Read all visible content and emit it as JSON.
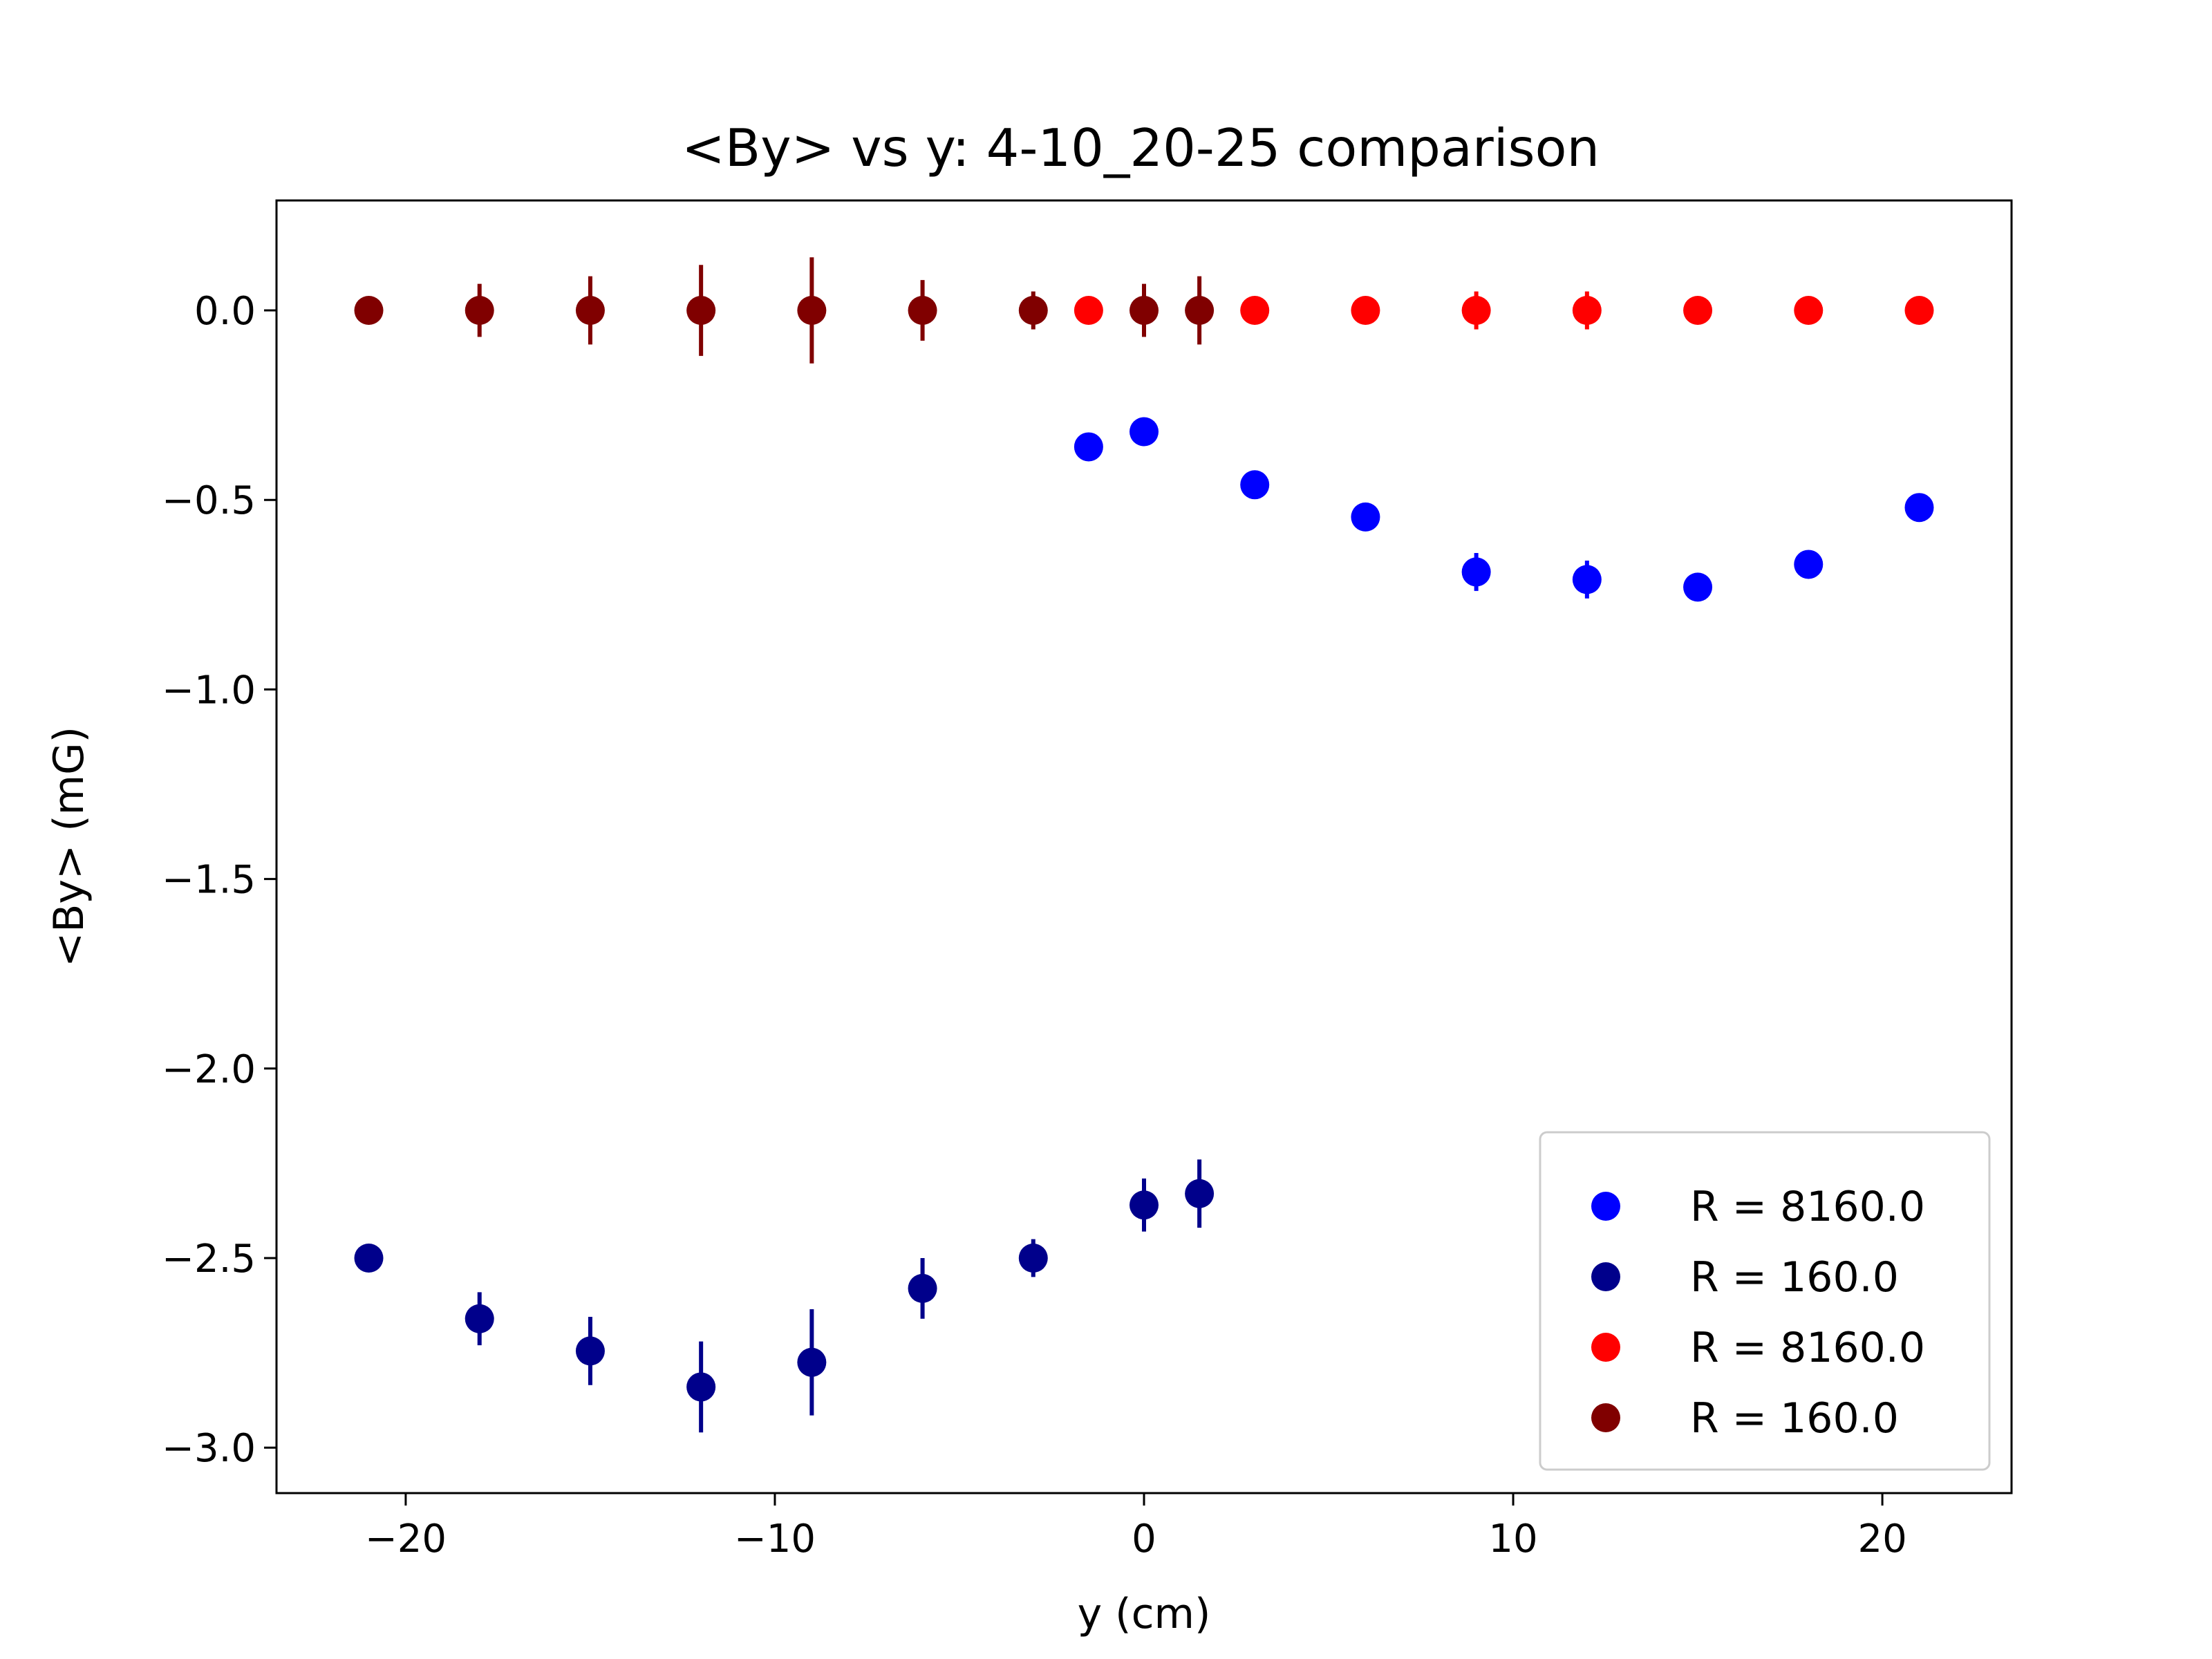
{
  "chart_data": {
    "type": "scatter",
    "title": "<By> vs y: 4-10_20-25 comparison",
    "xlabel": "y (cm)",
    "ylabel": "<By> (mG)",
    "xlim": [
      -23.5,
      23.5
    ],
    "ylim": [
      -3.12,
      0.29
    ],
    "xticks": [
      -20,
      -10,
      0,
      10,
      20
    ],
    "xtick_labels": [
      "−20",
      "−10",
      "0",
      "10",
      "20"
    ],
    "yticks": [
      0.0,
      -0.5,
      -1.0,
      -1.5,
      -2.0,
      -2.5,
      -3.0
    ],
    "ytick_labels": [
      "0.0",
      "−0.5",
      "−1.0",
      "−1.5",
      "−2.0",
      "−2.5",
      "−3.0"
    ],
    "grid": false,
    "legend_position": "lower-right",
    "series": [
      {
        "name": "R = 8160.0",
        "color": "#0000ff",
        "x": [
          -1.5,
          0,
          3,
          6,
          9,
          12,
          15,
          18,
          21
        ],
        "y": [
          -0.36,
          -0.32,
          -0.46,
          -0.545,
          -0.69,
          -0.71,
          -0.73,
          -0.67,
          -0.52
        ],
        "yerr": [
          0.0,
          0.0,
          0.0,
          0.0,
          0.05,
          0.05,
          0.03,
          0.0,
          0.0
        ]
      },
      {
        "name": "R = 160.0",
        "color": "#00008b",
        "x": [
          -21,
          -18,
          -15,
          -12,
          -9,
          -6,
          -3,
          0,
          1.5
        ],
        "y": [
          -2.5,
          -2.66,
          -2.745,
          -2.84,
          -2.775,
          -2.58,
          -2.5,
          -2.36,
          -2.33
        ],
        "yerr": [
          0.0,
          0.07,
          0.09,
          0.12,
          0.14,
          0.08,
          0.05,
          0.07,
          0.09
        ]
      },
      {
        "name": "R = 8160.0",
        "color": "#ff0000",
        "x": [
          -1.5,
          3,
          6,
          9,
          12,
          15,
          18,
          21
        ],
        "y": [
          0,
          0,
          0,
          0,
          0,
          0,
          0,
          0
        ],
        "yerr": [
          0.0,
          0.0,
          0.0,
          0.05,
          0.05,
          0.03,
          0.0,
          0.0
        ]
      },
      {
        "name": "R = 160.0",
        "color": "#800000",
        "x": [
          -21,
          -18,
          -15,
          -12,
          -9,
          -6,
          -3,
          0,
          1.5
        ],
        "y": [
          0,
          0,
          0,
          0,
          0,
          0,
          0,
          0,
          0
        ],
        "yerr": [
          0.0,
          0.07,
          0.09,
          0.12,
          0.14,
          0.08,
          0.05,
          0.07,
          0.09
        ]
      }
    ]
  }
}
